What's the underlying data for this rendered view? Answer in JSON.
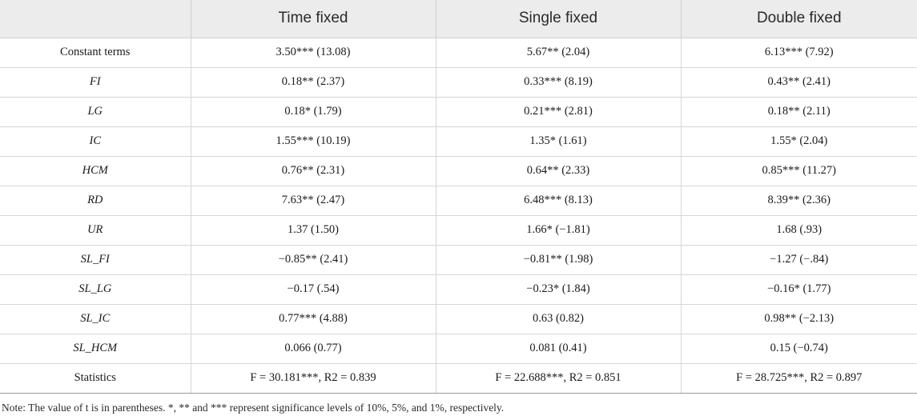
{
  "table": {
    "headers": [
      "",
      "Time fixed",
      "Single fixed",
      "Double fixed"
    ],
    "rows": [
      {
        "var": "Constant terms",
        "italic": false,
        "cells": [
          "3.50*** (13.08)",
          "5.67** (2.04)",
          "6.13*** (7.92)"
        ]
      },
      {
        "var": "FI",
        "italic": true,
        "cells": [
          "0.18** (2.37)",
          "0.33*** (8.19)",
          "0.43** (2.41)"
        ]
      },
      {
        "var": "LG",
        "italic": true,
        "cells": [
          "0.18* (1.79)",
          "0.21*** (2.81)",
          "0.18** (2.11)"
        ]
      },
      {
        "var": "IC",
        "italic": true,
        "cells": [
          "1.55*** (10.19)",
          "1.35* (1.61)",
          "1.55* (2.04)"
        ]
      },
      {
        "var": "HCM",
        "italic": true,
        "cells": [
          "0.76** (2.31)",
          "0.64** (2.33)",
          "0.85*** (11.27)"
        ]
      },
      {
        "var": "RD",
        "italic": true,
        "cells": [
          "7.63** (2.47)",
          "6.48*** (8.13)",
          "8.39** (2.36)"
        ]
      },
      {
        "var": "UR",
        "italic": true,
        "cells": [
          "1.37 (1.50)",
          "1.66* (−1.81)",
          "1.68 (.93)"
        ]
      },
      {
        "var": "SL_FI",
        "italic": true,
        "cells": [
          "−0.85** (2.41)",
          "−0.81** (1.98)",
          "−1.27 (−.84)"
        ]
      },
      {
        "var": "SL_LG",
        "italic": true,
        "cells": [
          "−0.17 (.54)",
          "−0.23* (1.84)",
          "−0.16* (1.77)"
        ]
      },
      {
        "var": "SL_IC",
        "italic": true,
        "cells": [
          "0.77*** (4.88)",
          "0.63 (0.82)",
          "0.98** (−2.13)"
        ]
      },
      {
        "var": "SL_HCM",
        "italic": true,
        "cells": [
          "0.066 (0.77)",
          "0.081 (0.41)",
          "0.15 (−0.74)"
        ]
      },
      {
        "var": "Statistics",
        "italic": false,
        "cells": [
          "F = 30.181***, R2 = 0.839",
          "F = 22.688***, R2 = 0.851",
          "F = 28.725***, R2 = 0.897"
        ]
      }
    ]
  },
  "note": "Note: The value of t is in parentheses. *, ** and *** represent significance levels of 10%, 5%, and 1%, respectively."
}
